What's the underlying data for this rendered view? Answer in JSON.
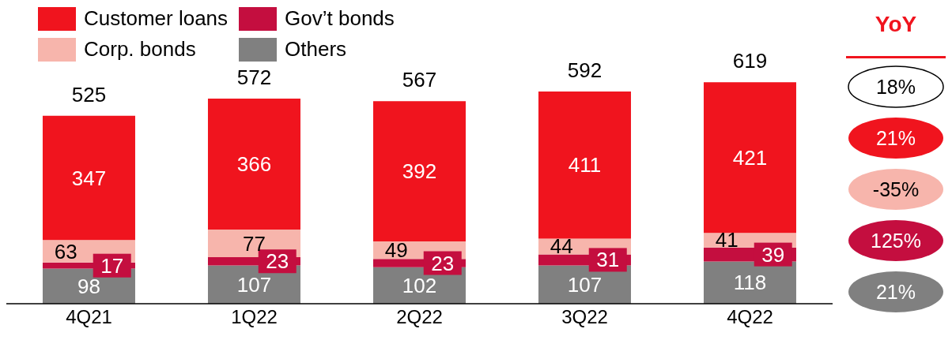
{
  "chart_data": {
    "type": "bar",
    "stacked": true,
    "categories": [
      "4Q21",
      "1Q22",
      "2Q22",
      "3Q22",
      "4Q22"
    ],
    "series": [
      {
        "name": "Others",
        "color": "#808080",
        "values": [
          98,
          107,
          102,
          107,
          118
        ]
      },
      {
        "name": "Gov’t bonds",
        "color": "#c40e3f",
        "values": [
          17,
          23,
          23,
          31,
          39
        ]
      },
      {
        "name": "Corp. bonds",
        "color": "#f7b5ac",
        "values": [
          63,
          77,
          49,
          44,
          41
        ]
      },
      {
        "name": "Customer loans",
        "color": "#f0141e",
        "values": [
          347,
          366,
          392,
          411,
          421
        ]
      }
    ],
    "totals": [
      "525",
      "572",
      "567",
      "592",
      "619"
    ],
    "data_labels": true,
    "legend": "top left",
    "annotations": [
      "YoY",
      "18%",
      "21%",
      "-35%",
      "125%",
      "21%"
    ]
  }
}
